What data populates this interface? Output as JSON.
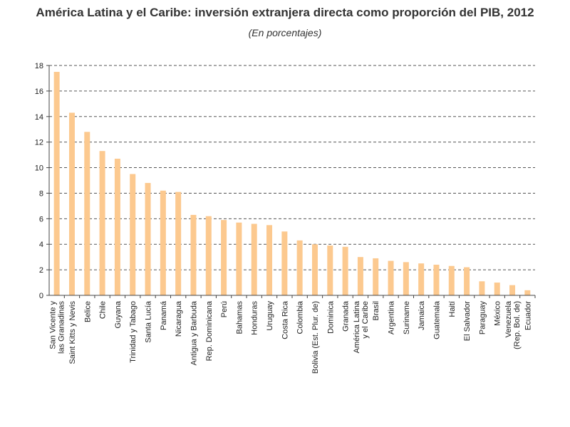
{
  "chart_data": {
    "type": "bar",
    "title": "América Latina y el Caribe: inversión extranjera directa como proporción del PIB, 2012",
    "subtitle": "(En porcentajes)",
    "xlabel": "",
    "ylabel": "",
    "ylim": [
      0,
      18
    ],
    "yticks": [
      0,
      2,
      4,
      6,
      8,
      10,
      12,
      14,
      16,
      18
    ],
    "grid": true,
    "bar_color": "#fcc98f",
    "categories": [
      [
        "San Vicente y",
        "las Granadinas"
      ],
      [
        "Saint Kitts y Nevis"
      ],
      [
        "Belice"
      ],
      [
        "Chile"
      ],
      [
        "Guyana"
      ],
      [
        "Trinidad y Tabago"
      ],
      [
        "Santa Lucía"
      ],
      [
        "Panamá"
      ],
      [
        "Nicaragua"
      ],
      [
        "Antigua y Barbuda"
      ],
      [
        "Rep. Dominicana"
      ],
      [
        "Perú"
      ],
      [
        "Bahamas"
      ],
      [
        "Honduras"
      ],
      [
        "Uruguay"
      ],
      [
        "Costa Rica"
      ],
      [
        "Colombia"
      ],
      [
        "Bolivia (Est. Plur. de)"
      ],
      [
        "Dominica"
      ],
      [
        "Granada"
      ],
      [
        "América Latina",
        "y el Caribe"
      ],
      [
        "Brasil"
      ],
      [
        "Argentina"
      ],
      [
        "Suriname"
      ],
      [
        "Jamaica"
      ],
      [
        "Guatemala"
      ],
      [
        "Haití"
      ],
      [
        "El Salvador"
      ],
      [
        "Paraguay"
      ],
      [
        "México"
      ],
      [
        "Venezuela",
        "(Rep. Bol. de)"
      ],
      [
        "Ecuador"
      ]
    ],
    "values": [
      17.5,
      14.3,
      12.8,
      11.3,
      10.7,
      9.5,
      8.8,
      8.2,
      8.1,
      6.3,
      6.2,
      5.9,
      5.7,
      5.6,
      5.5,
      5.0,
      4.3,
      4.0,
      3.9,
      3.8,
      3.0,
      2.9,
      2.7,
      2.6,
      2.5,
      2.4,
      2.3,
      2.2,
      1.1,
      1.0,
      0.8,
      0.4
    ]
  }
}
